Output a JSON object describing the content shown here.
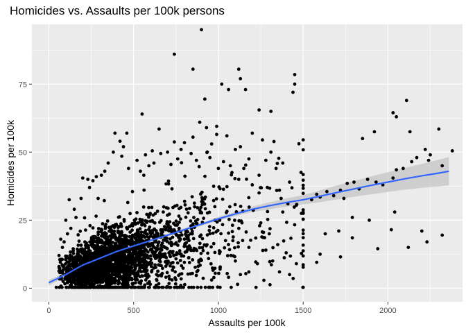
{
  "chart_data": {
    "type": "scatter",
    "title": "Homicides vs. Assaults per 100k persons",
    "xlabel": "Assaults per 100k",
    "ylabel": "Homicides per 100k",
    "xlim": [
      -100,
      2440
    ],
    "ylim": [
      -5,
      97
    ],
    "x_ticks": [
      0,
      500,
      1000,
      1500,
      2000
    ],
    "y_ticks": [
      0,
      25,
      50,
      75
    ],
    "grid": true,
    "background": "#ebebeb",
    "gridline_color": "#ffffff",
    "point_color": "#000000",
    "smooth_color": "#3366ff",
    "band_color": "#c4c4c4",
    "smooth": {
      "x": [
        0,
        100,
        200,
        300,
        400,
        500,
        600,
        700,
        800,
        900,
        1000,
        1100,
        1200,
        1300,
        1400,
        1500,
        1600,
        1700,
        1800,
        1900,
        2000,
        2100,
        2200,
        2300,
        2360
      ],
      "y": [
        2,
        5,
        8.5,
        11,
        13.5,
        15.5,
        17.5,
        19.5,
        21.5,
        23.5,
        25.5,
        27.3,
        29,
        30.3,
        31.5,
        32.5,
        33.8,
        35.2,
        36.5,
        37.8,
        39,
        40.2,
        41.3,
        42.3,
        43
      ],
      "lower": [
        1,
        4.2,
        7.9,
        10.6,
        13.1,
        15.1,
        17.1,
        19,
        21,
        22.9,
        24.8,
        26.5,
        28,
        29,
        30,
        30.8,
        31.6,
        32.6,
        33.6,
        34.5,
        35.4,
        36.2,
        36.9,
        37.4,
        37.8
      ],
      "upper": [
        3,
        5.8,
        9.1,
        11.4,
        13.9,
        15.9,
        17.9,
        20,
        22,
        24.1,
        26.2,
        28.1,
        30,
        31.6,
        33,
        34.2,
        36,
        37.8,
        39.4,
        41.1,
        42.6,
        44.2,
        45.7,
        47.2,
        48.2
      ]
    },
    "outliers": [
      [
        900,
        95
      ],
      [
        740,
        86
      ],
      [
        850,
        80.5
      ],
      [
        1120,
        80.5
      ],
      [
        1130,
        77
      ],
      [
        1450,
        78.5
      ],
      [
        1450,
        75
      ],
      [
        1020,
        75
      ],
      [
        1060,
        73
      ],
      [
        920,
        69.5
      ],
      [
        1160,
        73
      ],
      [
        1310,
        65
      ],
      [
        1440,
        72
      ],
      [
        1240,
        65.5
      ],
      [
        2110,
        69
      ],
      [
        2030,
        64.5
      ],
      [
        2050,
        63
      ],
      [
        550,
        64
      ],
      [
        890,
        61
      ],
      [
        930,
        59
      ],
      [
        650,
        58.5
      ],
      [
        990,
        59.5
      ],
      [
        2300,
        58.5
      ],
      [
        1920,
        57.5
      ],
      [
        2130,
        57.5
      ],
      [
        1850,
        55
      ],
      [
        2380,
        50.5
      ],
      [
        2250,
        49
      ],
      [
        2220,
        51
      ],
      [
        2170,
        48
      ],
      [
        2140,
        46.5
      ],
      [
        2240,
        47
      ],
      [
        2320,
        45
      ],
      [
        2090,
        44
      ],
      [
        2050,
        43.5
      ],
      [
        2030,
        40.5
      ],
      [
        1930,
        39
      ],
      [
        1880,
        40
      ],
      [
        1970,
        38
      ],
      [
        1800,
        39
      ],
      [
        1760,
        38.5
      ],
      [
        1830,
        36.5
      ],
      [
        1580,
        34.5
      ],
      [
        1640,
        35.5
      ],
      [
        1720,
        36
      ],
      [
        1680,
        34
      ],
      [
        1600,
        33.5
      ],
      [
        1550,
        32.5
      ],
      [
        1740,
        33
      ],
      [
        1790,
        26
      ],
      [
        1890,
        25
      ],
      [
        2040,
        28
      ],
      [
        1710,
        21
      ],
      [
        1630,
        20
      ],
      [
        1790,
        18.5
      ],
      [
        2230,
        17
      ],
      [
        2120,
        15
      ],
      [
        1940,
        14.5
      ],
      [
        2020,
        21.5
      ],
      [
        2320,
        19.5
      ],
      [
        1720,
        11.5
      ],
      [
        1580,
        9.5
      ],
      [
        1600,
        12.5
      ],
      [
        2200,
        21
      ],
      [
        1490,
        27.5
      ],
      [
        1460,
        30.5
      ],
      [
        1410,
        31
      ],
      [
        1380,
        28
      ],
      [
        1370,
        33
      ],
      [
        1360,
        36
      ],
      [
        1420,
        39
      ],
      [
        1380,
        46
      ],
      [
        1310,
        50
      ],
      [
        1340,
        44
      ],
      [
        1260,
        54.5
      ],
      [
        1280,
        47
      ],
      [
        1240,
        41.5
      ],
      [
        1200,
        57
      ],
      [
        1130,
        52
      ],
      [
        1180,
        47.5
      ],
      [
        1100,
        51
      ],
      [
        1050,
        56
      ],
      [
        1030,
        46.5
      ],
      [
        1080,
        42.5
      ],
      [
        960,
        53
      ],
      [
        990,
        56.5
      ],
      [
        850,
        55.5
      ],
      [
        780,
        51
      ],
      [
        800,
        53.5
      ],
      [
        760,
        47.5
      ],
      [
        700,
        50
      ],
      [
        660,
        49.5
      ],
      [
        620,
        46
      ],
      [
        610,
        50.5
      ],
      [
        570,
        49
      ],
      [
        440,
        52
      ],
      [
        460,
        57
      ],
      [
        420,
        54
      ],
      [
        430,
        48.5
      ],
      [
        390,
        57
      ],
      [
        380,
        50
      ],
      [
        350,
        46
      ],
      [
        470,
        44
      ],
      [
        520,
        47
      ],
      [
        540,
        43
      ],
      [
        560,
        41.5
      ],
      [
        590,
        45
      ],
      [
        720,
        45.5
      ],
      [
        870,
        47
      ],
      [
        950,
        48
      ],
      [
        1000,
        44
      ],
      [
        1070,
        45
      ],
      [
        1150,
        44
      ],
      [
        1200,
        38
      ],
      [
        1240,
        35
      ],
      [
        1120,
        40
      ],
      [
        330,
        43
      ],
      [
        310,
        41.5
      ],
      [
        280,
        41
      ],
      [
        260,
        39.5
      ],
      [
        200,
        40.5
      ],
      [
        230,
        40
      ],
      [
        240,
        37
      ],
      [
        190,
        33
      ],
      [
        120,
        32.5
      ],
      [
        150,
        29
      ],
      [
        100,
        25
      ],
      [
        110,
        20
      ],
      [
        90,
        17
      ],
      [
        80,
        15
      ],
      [
        60,
        12
      ],
      [
        70,
        18
      ],
      [
        130,
        22
      ],
      [
        160,
        26
      ],
      [
        1320,
        10
      ],
      [
        1360,
        6
      ],
      [
        1420,
        5
      ],
      [
        1460,
        9
      ],
      [
        1400,
        13
      ],
      [
        1350,
        16
      ],
      [
        1300,
        20
      ],
      [
        1280,
        14
      ],
      [
        1230,
        9
      ],
      [
        1180,
        6
      ],
      [
        1130,
        5
      ],
      [
        1100,
        10
      ],
      [
        1060,
        4
      ],
      [
        1010,
        7
      ],
      [
        960,
        3
      ],
      [
        1180,
        15
      ],
      [
        1250,
        24
      ]
    ]
  }
}
